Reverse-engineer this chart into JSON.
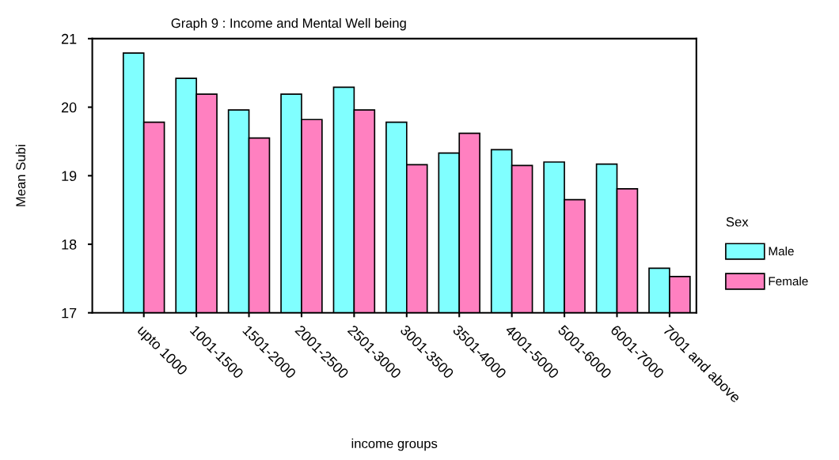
{
  "chart_data": {
    "type": "bar",
    "title": "Graph 9 : Income and Mental Well being",
    "xlabel": "income groups",
    "ylabel": "Mean Subi",
    "legend_title": "Sex",
    "categories": [
      "upto 1000",
      "1001-1500",
      "1501-2000",
      "2001-2500",
      "2501-3000",
      "3001-3500",
      "3501-4000",
      "4001-5000",
      "5001-6000",
      "6001-7000",
      "7001 and above"
    ],
    "series": [
      {
        "name": "Male",
        "color": "#80ffff",
        "values": [
          20.79,
          20.42,
          19.96,
          20.19,
          20.29,
          19.78,
          19.33,
          19.38,
          19.2,
          19.17,
          17.65
        ]
      },
      {
        "name": "Female",
        "color": "#ff80c0",
        "values": [
          19.78,
          20.19,
          19.55,
          19.82,
          19.96,
          19.16,
          19.62,
          19.15,
          18.65,
          18.81,
          17.53
        ]
      }
    ],
    "ylim": [
      17,
      21
    ],
    "yticks": [
      17,
      18,
      19,
      20,
      21
    ],
    "grid": false,
    "legend": "right"
  }
}
